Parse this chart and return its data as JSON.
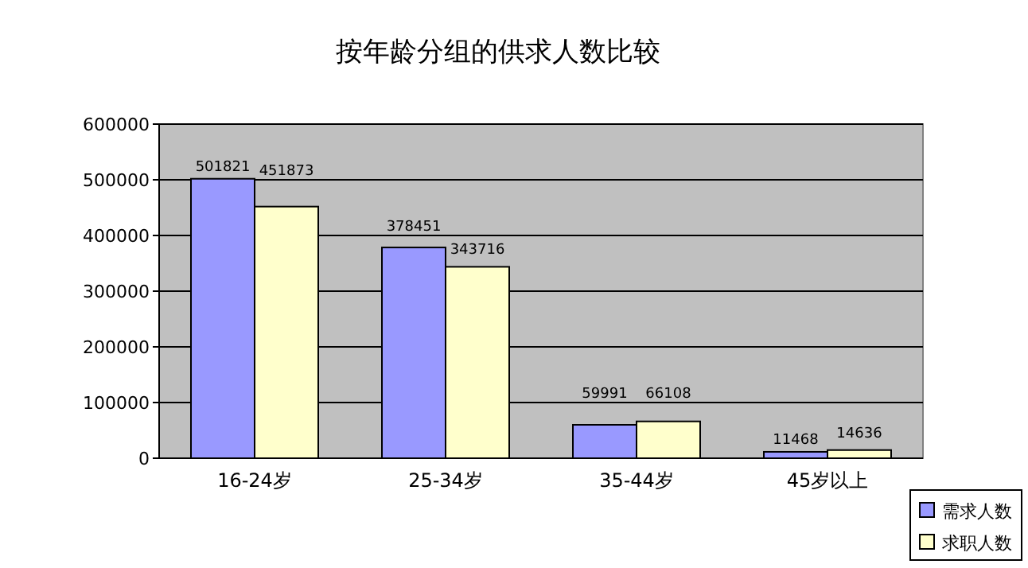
{
  "chart_data": {
    "type": "bar",
    "title": "按年龄分组的供求人数比较",
    "categories": [
      "16-24岁",
      "25-34岁",
      "35-44岁",
      "45岁以上"
    ],
    "series": [
      {
        "name": "需求人数",
        "color": "#9999ff",
        "values": [
          501821,
          378451,
          59991,
          11468
        ]
      },
      {
        "name": "求职人数",
        "color": "#ffffcc",
        "values": [
          451873,
          343716,
          66108,
          14636
        ]
      }
    ],
    "ylim": [
      0,
      600000
    ],
    "yticks": [
      0,
      100000,
      200000,
      300000,
      400000,
      500000,
      600000
    ],
    "grid": "y",
    "legend": "bottom right",
    "data_labels": true
  }
}
